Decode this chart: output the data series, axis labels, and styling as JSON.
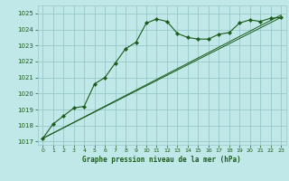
{
  "title": "Graphe pression niveau de la mer (hPa)",
  "bg_color": "#c0e8e8",
  "grid_color": "#98c8c8",
  "line_color": "#1a5c1a",
  "xlim": [
    -0.5,
    23.5
  ],
  "ylim": [
    1016.8,
    1025.5
  ],
  "yticks": [
    1017,
    1018,
    1019,
    1020,
    1021,
    1022,
    1023,
    1024,
    1025
  ],
  "xticks": [
    0,
    1,
    2,
    3,
    4,
    5,
    6,
    7,
    8,
    9,
    10,
    11,
    12,
    13,
    14,
    15,
    16,
    17,
    18,
    19,
    20,
    21,
    22,
    23
  ],
  "series1_x": [
    0,
    1,
    2,
    3,
    4,
    5,
    6,
    7,
    8,
    9,
    10,
    11,
    12,
    13,
    14,
    15,
    16,
    17,
    18,
    19,
    20,
    21,
    22,
    23
  ],
  "series1_y": [
    1017.2,
    1018.1,
    1018.6,
    1019.1,
    1019.2,
    1020.6,
    1021.0,
    1021.9,
    1022.8,
    1023.2,
    1024.4,
    1024.65,
    1024.5,
    1023.75,
    1023.5,
    1023.4,
    1023.4,
    1023.7,
    1023.8,
    1024.4,
    1024.6,
    1024.5,
    1024.7,
    1024.75
  ],
  "series2_x": [
    0,
    23
  ],
  "series2_y": [
    1017.2,
    1024.75
  ],
  "series3_x": [
    0,
    23
  ],
  "series3_y": [
    1017.2,
    1024.9
  ]
}
